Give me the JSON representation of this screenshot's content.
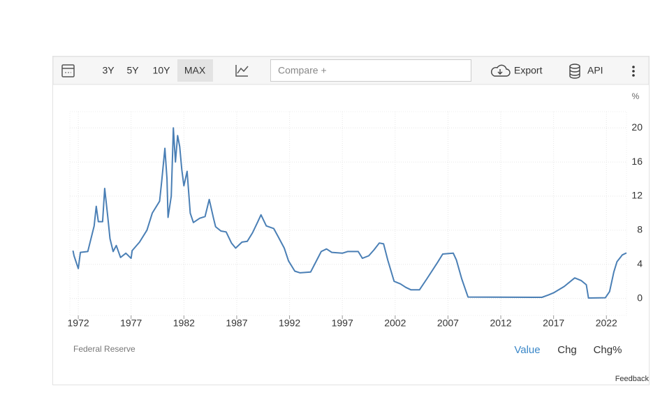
{
  "toolbar": {
    "ranges": [
      "3Y",
      "5Y",
      "10Y",
      "MAX"
    ],
    "compare": "Compare +",
    "export": "Export",
    "api": "API"
  },
  "chart_data": {
    "type": "line",
    "unit": "%",
    "source": "Federal Reserve",
    "x": [
      1971.5,
      1971.6,
      1972.0,
      1972.2,
      1972.9,
      1973.5,
      1973.7,
      1973.9,
      1974.3,
      1974.5,
      1974.8,
      1975.0,
      1975.3,
      1975.6,
      1976.0,
      1976.5,
      1977.0,
      1977.1,
      1977.8,
      1978.5,
      1979.0,
      1979.7,
      1979.9,
      1980.2,
      1980.4,
      1980.5,
      1980.8,
      1980.95,
      1981.0,
      1981.2,
      1981.4,
      1981.6,
      1981.8,
      1982.0,
      1982.3,
      1982.6,
      1982.9,
      1983.5,
      1984.0,
      1984.4,
      1984.8,
      1985.0,
      1985.5,
      1986.0,
      1986.5,
      1986.9,
      1987.5,
      1988.0,
      1988.5,
      1989.0,
      1989.3,
      1989.8,
      1990.5,
      1990.9,
      1991.5,
      1991.9,
      1992.5,
      1993.0,
      1994.0,
      1994.5,
      1995.0,
      1995.5,
      1996.0,
      1997.0,
      1997.5,
      1998.5,
      1998.9,
      1999.5,
      2000.0,
      2000.5,
      2000.9,
      2001.3,
      2001.9,
      2002.5,
      2003.0,
      2003.5,
      2004.3,
      2005.0,
      2006.0,
      2006.5,
      2007.5,
      2007.8,
      2008.3,
      2008.9,
      2015.9,
      2016.5,
      2017.0,
      2018.0,
      2019.0,
      2019.6,
      2020.1,
      2020.3,
      2021.9,
      2022.3,
      2022.7,
      2023.0,
      2023.5,
      2023.9
    ],
    "values": [
      5.6,
      5.0,
      3.5,
      5.4,
      5.5,
      8.5,
      10.8,
      9.0,
      9.0,
      12.9,
      9.5,
      7.0,
      5.5,
      6.2,
      4.8,
      5.3,
      4.7,
      5.6,
      6.6,
      8.0,
      10.0,
      11.4,
      13.8,
      17.6,
      14.0,
      9.5,
      12.0,
      18.0,
      20.0,
      16.0,
      19.1,
      17.8,
      15.1,
      13.2,
      14.9,
      10.0,
      8.9,
      9.4,
      9.6,
      11.6,
      9.4,
      8.4,
      7.9,
      7.8,
      6.5,
      5.9,
      6.6,
      6.7,
      7.7,
      9.0,
      9.8,
      8.5,
      8.2,
      7.3,
      5.9,
      4.4,
      3.2,
      3.0,
      3.1,
      4.3,
      5.5,
      5.8,
      5.4,
      5.3,
      5.5,
      5.5,
      4.7,
      5.0,
      5.7,
      6.5,
      6.4,
      4.5,
      2.0,
      1.7,
      1.3,
      1.0,
      1.0,
      2.3,
      4.2,
      5.2,
      5.3,
      4.5,
      2.3,
      0.16,
      0.13,
      0.4,
      0.65,
      1.4,
      2.4,
      2.1,
      1.6,
      0.05,
      0.08,
      0.8,
      3.1,
      4.3,
      5.1,
      5.33
    ],
    "color": "#4a7fb5",
    "xlim": [
      1971.2,
      2023.9
    ],
    "xticks": [
      1972,
      1977,
      1982,
      1987,
      1992,
      1997,
      2002,
      2007,
      2012,
      2017,
      2022
    ],
    "ylim": [
      -2,
      21.9
    ],
    "yticks": [
      0,
      4,
      8,
      12,
      16,
      20
    ],
    "grid": true
  },
  "footer": {
    "tabs": [
      "Value",
      "Chg",
      "Chg%"
    ],
    "feedback": "Feedback"
  }
}
